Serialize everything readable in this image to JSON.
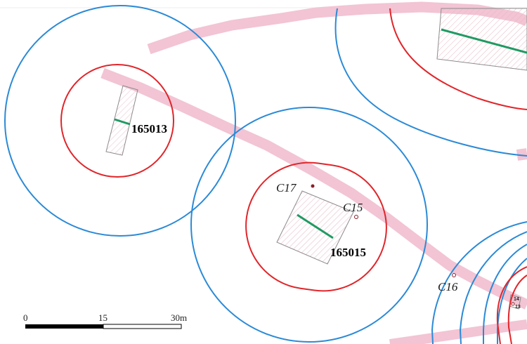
{
  "map": {
    "colors": {
      "background": "#ffffff",
      "road": "#f2c4d4",
      "outer_buffer": "#2b8ad6",
      "inner_buffer": "#e0262b",
      "center_line": "#1f9a63",
      "parcel_outline": "#8c8c8c",
      "point_marker": "#8a1f2a"
    },
    "parcels": [
      {
        "id": "165013",
        "label": "165013"
      },
      {
        "id": "165015",
        "label": "165015"
      }
    ],
    "points": [
      {
        "id": "C17",
        "label": "C17"
      },
      {
        "id": "C15",
        "label": "C15"
      },
      {
        "id": "C16",
        "label": "C16"
      }
    ],
    "small_labels": [
      "14",
      "13"
    ],
    "scale_bar": {
      "ticks": [
        "0",
        "15",
        "30m"
      ]
    }
  }
}
